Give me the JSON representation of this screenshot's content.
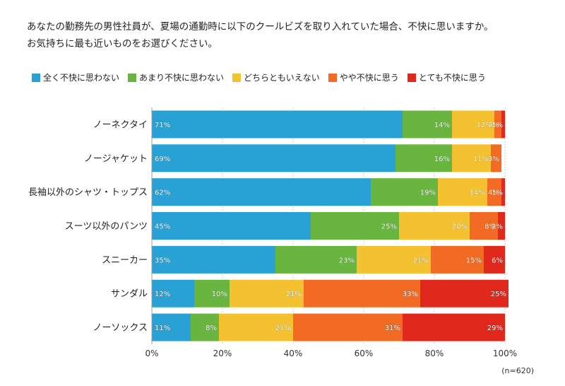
{
  "title_lines": [
    "あなたの勤務先の男性社員が、夏場の通勤時に以下のクールビズを取り入れていた場合、不快に思いますか。",
    "お気持ちに最も近いものをお選びください。"
  ],
  "note": "(n=620)",
  "colors": [
    "#2aa1d4",
    "#6ab540",
    "#f4c231",
    "#f26b25",
    "#e0291c"
  ],
  "chart_data": {
    "type": "bar",
    "orientation": "horizontal",
    "stacked": true,
    "percent": true,
    "categories": [
      "ノーネクタイ",
      "ノージャケット",
      "長袖以外のシャツ・トップス",
      "スーツ以外のパンツ",
      "スニーカー",
      "サンダル",
      "ノーソックス"
    ],
    "series": [
      {
        "name": "全く不快に思わない",
        "values": [
          71,
          69,
          62,
          45,
          35,
          12,
          11
        ]
      },
      {
        "name": "あまり不快に思わない",
        "values": [
          14,
          16,
          19,
          25,
          23,
          10,
          8
        ]
      },
      {
        "name": "どちらともいえない",
        "values": [
          12,
          11,
          14,
          20,
          21,
          21,
          21
        ]
      },
      {
        "name": "やや不快に思う",
        "values": [
          2,
          3,
          4,
          8,
          15,
          33,
          31
        ]
      },
      {
        "name": "とても不快に思う",
        "values": [
          1,
          0,
          1,
          2,
          6,
          25,
          29
        ]
      }
    ],
    "xlim": [
      0,
      100
    ],
    "xticks": [
      "0%",
      "20%",
      "40%",
      "60%",
      "80%",
      "100%"
    ],
    "legend_position": "top",
    "grid": true
  }
}
